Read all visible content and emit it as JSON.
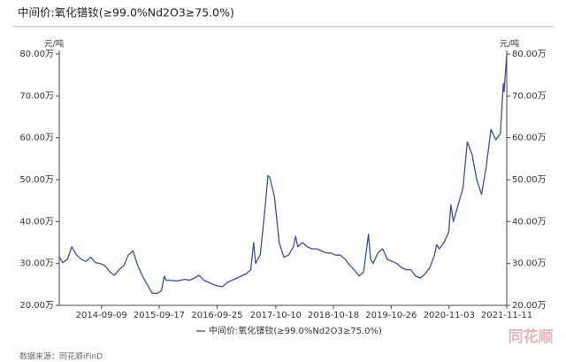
{
  "chart_data": {
    "type": "line",
    "title": "中间价:氧化镨钕(≥99.0%Nd2O3≥75.0%)",
    "y_axis_label": "元/吨",
    "y2_axis_label": "元/吨",
    "x": [
      "2013-12-10",
      "2014-01-01",
      "2014-02-01",
      "2014-03-01",
      "2014-04-01",
      "2014-05-01",
      "2014-06-01",
      "2014-07-01",
      "2014-08-01",
      "2014-09-01",
      "2014-10-01",
      "2014-11-01",
      "2014-12-01",
      "2015-01-01",
      "2015-02-01",
      "2015-03-01",
      "2015-04-01",
      "2015-05-01",
      "2015-06-01",
      "2015-07-01",
      "2015-08-01",
      "2015-09-01",
      "2015-10-01",
      "2015-10-20",
      "2015-11-01",
      "2015-12-01",
      "2016-01-01",
      "2016-02-01",
      "2016-03-01",
      "2016-04-01",
      "2016-05-01",
      "2016-06-01",
      "2016-07-01",
      "2016-08-01",
      "2016-09-01",
      "2016-10-01",
      "2016-11-01",
      "2016-12-01",
      "2017-01-01",
      "2017-02-01",
      "2017-03-01",
      "2017-04-01",
      "2017-05-01",
      "2017-05-20",
      "2017-06-01",
      "2017-07-01",
      "2017-08-01",
      "2017-08-20",
      "2017-09-01",
      "2017-10-01",
      "2017-11-01",
      "2017-12-01",
      "2018-01-01",
      "2018-02-01",
      "2018-02-15",
      "2018-03-01",
      "2018-04-01",
      "2018-05-01",
      "2018-06-01",
      "2018-07-01",
      "2018-08-01",
      "2018-09-01",
      "2018-10-01",
      "2018-11-01",
      "2018-12-01",
      "2019-01-01",
      "2019-02-01",
      "2019-03-01",
      "2019-04-01",
      "2019-05-01",
      "2019-06-01",
      "2019-06-15",
      "2019-07-01",
      "2019-08-01",
      "2019-09-01",
      "2019-10-01",
      "2019-11-01",
      "2019-12-01",
      "2020-01-01",
      "2020-02-01",
      "2020-03-01",
      "2020-04-01",
      "2020-05-01",
      "2020-06-01",
      "2020-07-01",
      "2020-08-01",
      "2020-08-15",
      "2020-09-01",
      "2020-10-01",
      "2020-11-01",
      "2020-11-15",
      "2020-12-01",
      "2021-01-01",
      "2021-02-01",
      "2021-03-01",
      "2021-04-01",
      "2021-05-01",
      "2021-06-01",
      "2021-07-01",
      "2021-08-01",
      "2021-09-01",
      "2021-10-01",
      "2021-10-20",
      "2021-10-25",
      "2021-11-11"
    ],
    "series": [
      {
        "name": "中间价:氧化镨钕(≥99.0%Nd2O3≥75.0%)",
        "color": "#3b4f94",
        "values": [
          31.6,
          30.2,
          31,
          34,
          32,
          31,
          30.5,
          31.5,
          30.2,
          30,
          29.5,
          28,
          27.2,
          28.5,
          29.5,
          32,
          33,
          29.5,
          27,
          25,
          23,
          22.8,
          23.5,
          27,
          26,
          26,
          25.8,
          26,
          26.2,
          26,
          26.5,
          27.2,
          26,
          25.5,
          25,
          24.6,
          24.5,
          25.5,
          26,
          26.5,
          27,
          27.5,
          28.5,
          35,
          30,
          32,
          43,
          51,
          50.5,
          46,
          35,
          31.5,
          32,
          34,
          36.5,
          34,
          35,
          34,
          33.5,
          33.5,
          33,
          32.5,
          32.5,
          32,
          32,
          31,
          29.5,
          28.5,
          27,
          28,
          37,
          31,
          30,
          32.5,
          33.5,
          31,
          30.5,
          30,
          29,
          28.5,
          28.5,
          27,
          26.5,
          27.5,
          29,
          32,
          34.5,
          33.5,
          35,
          37.5,
          44,
          40,
          44,
          48,
          59,
          56,
          50,
          46.5,
          53,
          62,
          59.5,
          61,
          73,
          71,
          80
        ]
      }
    ],
    "xlim": [
      "2013-12-10",
      "2021-11-11"
    ],
    "xticks": [
      "2014-09-09",
      "2015-09-17",
      "2016-09-25",
      "2017-10-10",
      "2018-10-18",
      "2019-10-26",
      "2020-11-03",
      "2021-11-11"
    ],
    "ylim": [
      20,
      80
    ],
    "yticks": [
      {
        "value": 20,
        "label": "20.00万"
      },
      {
        "value": 30,
        "label": "30.00万"
      },
      {
        "value": 40,
        "label": "40.00万"
      },
      {
        "value": 50,
        "label": "50.00万"
      },
      {
        "value": 60,
        "label": "60.00万"
      },
      {
        "value": 70,
        "label": "70.00万"
      },
      {
        "value": 80,
        "label": "80.00万"
      }
    ],
    "y2lim": [
      20,
      80
    ],
    "y2ticks": [
      {
        "value": 20,
        "label": "20.00万"
      },
      {
        "value": 30,
        "label": "30.00万"
      },
      {
        "value": 40,
        "label": "40.00万"
      },
      {
        "value": 50,
        "label": "50.00万"
      },
      {
        "value": 60,
        "label": "60.00万"
      },
      {
        "value": 70,
        "label": "70.00万"
      },
      {
        "value": 80,
        "label": "80.00万"
      }
    ],
    "source": "数据来源：同花顺iFinD",
    "watermark": "同花顺"
  }
}
